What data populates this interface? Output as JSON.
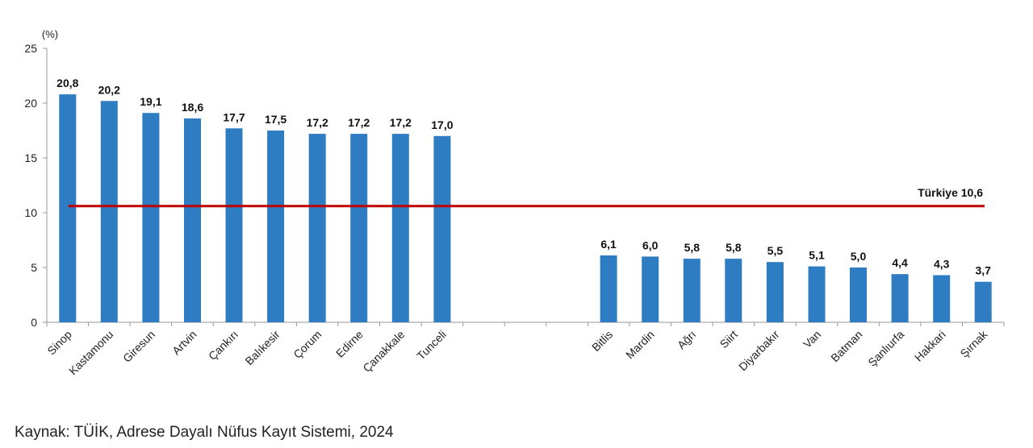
{
  "chart_data": {
    "type": "bar",
    "unit_label": "(%)",
    "ylim": [
      0,
      25
    ],
    "y_ticks": [
      0,
      5,
      10,
      15,
      20,
      25
    ],
    "grid": false,
    "groups": [
      {
        "categories": [
          "Sinop",
          "Kastamonu",
          "Giresun",
          "Artvin",
          "Çankırı",
          "Balıkesir",
          "Çorum",
          "Edirne",
          "Çanakkale",
          "Tunceli"
        ],
        "values": [
          20.8,
          20.2,
          19.1,
          18.6,
          17.7,
          17.5,
          17.2,
          17.2,
          17.2,
          17.0
        ],
        "value_labels": [
          "20,8",
          "20,2",
          "19,1",
          "18,6",
          "17,7",
          "17,5",
          "17,2",
          "17,2",
          "17,2",
          "17,0"
        ]
      },
      {
        "categories": [
          "Bitlis",
          "Mardin",
          "Ağrı",
          "Siirt",
          "Diyarbakır",
          "Van",
          "Batman",
          "Şanlıurfa",
          "Hakkari",
          "Şırnak"
        ],
        "values": [
          6.1,
          6.0,
          5.8,
          5.8,
          5.5,
          5.1,
          5.0,
          4.4,
          4.3,
          3.7
        ],
        "value_labels": [
          "6,1",
          "6,0",
          "5,8",
          "5,8",
          "5,5",
          "5,1",
          "5,0",
          "4,4",
          "4,3",
          "3,7"
        ]
      }
    ],
    "reference_line": {
      "label": "Türkiye",
      "value": 10.6,
      "value_label": "10,6",
      "color": "#c00000"
    },
    "bar_color": "#2e7cc2",
    "axis_color": "#999999"
  },
  "footer": {
    "source": "Kaynak: TÜİK, Adrese Dayalı Nüfus Kayıt Sistemi, 2024"
  }
}
